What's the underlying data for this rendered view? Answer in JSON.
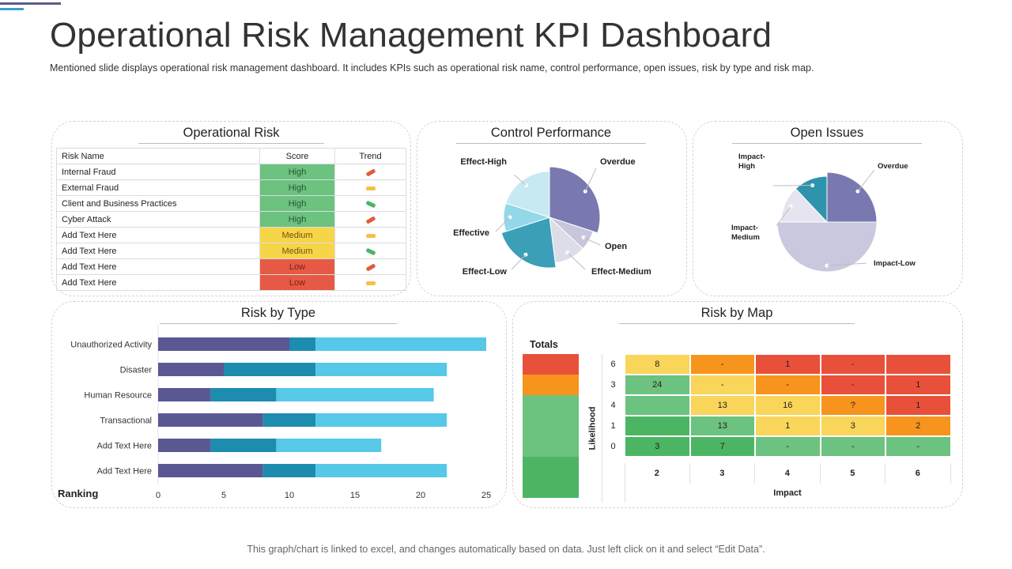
{
  "page": {
    "title": "Operational Risk Management KPI Dashboard",
    "subtitle": "Mentioned slide displays operational risk management dashboard. It includes KPIs such as operational risk name, control performance, open issues, risk by type and risk map.",
    "footer": "This graph/chart is linked to excel, and changes automatically based on data. Just left click on it and select “Edit Data”."
  },
  "operational_risk": {
    "title": "Operational Risk",
    "headers": [
      "Risk Name",
      "Score",
      "Trend"
    ],
    "rows": [
      {
        "name": "Internal Fraud",
        "score": "High",
        "trend": "up"
      },
      {
        "name": "External Fraud",
        "score": "High",
        "trend": "flat"
      },
      {
        "name": "Client and Business Practices",
        "score": "High",
        "trend": "down"
      },
      {
        "name": "Cyber Attack",
        "score": "High",
        "trend": "up"
      },
      {
        "name": "Add Text Here",
        "score": "Medium",
        "trend": "flat"
      },
      {
        "name": "Add Text Here",
        "score": "Medium",
        "trend": "down"
      },
      {
        "name": "Add Text Here",
        "score": "Low",
        "trend": "up"
      },
      {
        "name": "Add Text Here",
        "score": "Low",
        "trend": "flat"
      }
    ]
  },
  "control_performance": {
    "title": "Control Performance"
  },
  "open_issues": {
    "title": "Open Issues"
  },
  "risk_by_type": {
    "title": "Risk by Type",
    "ranking_label": "Ranking"
  },
  "risk_by_map": {
    "title": "Risk by Map",
    "totals_label": "Totals",
    "ylabel": "Likelihood",
    "xlabel": "Impact",
    "rows": [
      {
        "likelihood": "6",
        "cells": [
          "8",
          "-",
          "1",
          "-",
          ""
        ]
      },
      {
        "likelihood": "3",
        "cells": [
          "24",
          "-",
          "-",
          "-",
          "1"
        ]
      },
      {
        "likelihood": "4",
        "cells": [
          "",
          "13",
          "16",
          "?",
          "1"
        ]
      },
      {
        "likelihood": "1",
        "cells": [
          "",
          "13",
          "1",
          "3",
          "2"
        ]
      },
      {
        "likelihood": "0",
        "cells": [
          "3",
          "7",
          "-",
          "-",
          "-"
        ]
      }
    ],
    "impact": [
      "2",
      "3",
      "4",
      "5",
      "6"
    ],
    "cell_colors": [
      [
        "#f9d55a",
        "#f7941d",
        "#e8503a",
        "#e8503a",
        "#e8503a"
      ],
      [
        "#6cc27f",
        "#f9d55a",
        "#f7941d",
        "#e8503a",
        "#e8503a"
      ],
      [
        "#6cc27f",
        "#f9d55a",
        "#f9d55a",
        "#f7941d",
        "#e8503a"
      ],
      [
        "#4cb564",
        "#6cc27f",
        "#f9d55a",
        "#f9d55a",
        "#f7941d"
      ],
      [
        "#4cb564",
        "#4cb564",
        "#6cc27f",
        "#6cc27f",
        "#6cc27f"
      ]
    ],
    "totals_colors": [
      "#e8503a",
      "#f7941d",
      "#6cc27f",
      "#6cc27f",
      "#6cc27f",
      "#4cb564",
      "#4cb564"
    ]
  },
  "chart_data": [
    {
      "type": "pie",
      "title": "Control Performance",
      "slices": [
        {
          "label": "Overdue",
          "value": 30,
          "color": "#7a78b0"
        },
        {
          "label": "Open",
          "value": 7,
          "color": "#c7c6dc"
        },
        {
          "label": "Effect-Medium",
          "value": 11,
          "color": "#dddce9"
        },
        {
          "label": "Effect-Low",
          "value": 22,
          "color": "#3a9fb7"
        },
        {
          "label": "Effective",
          "value": 10,
          "color": "#93d8e8"
        },
        {
          "label": "Effect-High",
          "value": 20,
          "color": "#c6e9f2"
        }
      ]
    },
    {
      "type": "pie",
      "title": "Open Issues",
      "slices": [
        {
          "label": "Overdue",
          "value": 25,
          "color": "#7a78b0"
        },
        {
          "label": "Impact-Low",
          "value": 50,
          "color": "#c9c8df"
        },
        {
          "label": "Impact-Medium",
          "value": 13,
          "color": "#e5e4ef"
        },
        {
          "label": "Impact-High",
          "value": 12,
          "color": "#2e93ad"
        }
      ]
    },
    {
      "type": "bar",
      "orientation": "horizontal",
      "stacked": true,
      "title": "Risk by Type",
      "categories": [
        "Unauthorized Activity",
        "Disaster",
        "Human Resource",
        "Transactional",
        "Add Text Here",
        "Add Text Here"
      ],
      "series": [
        {
          "values": [
            10,
            5,
            4,
            8,
            4,
            8
          ],
          "color": "#5a5893"
        },
        {
          "values": [
            2,
            7,
            5,
            4,
            5,
            4
          ],
          "color": "#1e8caf"
        },
        {
          "values": [
            13,
            10,
            12,
            10,
            8,
            10
          ],
          "color": "#56c8e8"
        }
      ],
      "xlim": [
        0,
        25
      ],
      "xticks": [
        0,
        5,
        10,
        15,
        20,
        25
      ]
    }
  ]
}
